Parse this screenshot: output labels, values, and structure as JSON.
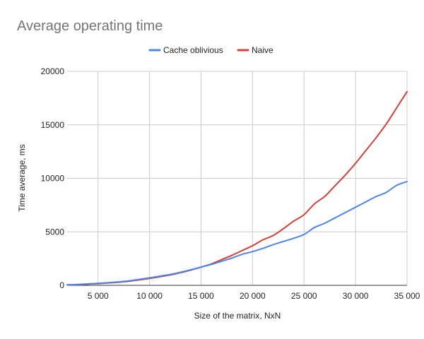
{
  "chart_data": {
    "type": "line",
    "title": "Average operating time",
    "xlabel": "Size of the matrix, NxN",
    "ylabel": "Time average, ms",
    "xlim": [
      2000,
      35000
    ],
    "ylim": [
      0,
      20000
    ],
    "xticks": [
      5000,
      10000,
      15000,
      20000,
      25000,
      30000,
      35000
    ],
    "xtick_labels": [
      "5 000",
      "10 000",
      "15 000",
      "20 000",
      "25 000",
      "30 000",
      "35 000"
    ],
    "yticks": [
      0,
      5000,
      10000,
      15000,
      20000
    ],
    "ytick_labels": [
      "0",
      "5000",
      "10000",
      "15000",
      "20000"
    ],
    "grid": true,
    "legend_position": "top-center",
    "series": [
      {
        "name": "Cache oblivious",
        "color": "#4a86e8",
        "x": [
          2000,
          3000,
          4000,
          5000,
          6000,
          7000,
          8000,
          9000,
          10000,
          11000,
          12000,
          13000,
          14000,
          15000,
          16000,
          17000,
          18000,
          19000,
          20000,
          21000,
          22000,
          23000,
          24000,
          25000,
          26000,
          27000,
          28000,
          29000,
          30000,
          31000,
          32000,
          33000,
          34000,
          35000
        ],
        "values": [
          50,
          80,
          130,
          190,
          250,
          320,
          420,
          560,
          700,
          860,
          1020,
          1220,
          1450,
          1700,
          1950,
          2250,
          2550,
          2900,
          3150,
          3450,
          3800,
          4100,
          4400,
          4750,
          5400,
          5800,
          6300,
          6800,
          7300,
          7800,
          8300,
          8700,
          9350,
          9700
        ]
      },
      {
        "name": "Naive",
        "color": "#d93f35",
        "x": [
          2000,
          3000,
          4000,
          5000,
          6000,
          7000,
          8000,
          9000,
          10000,
          11000,
          12000,
          13000,
          14000,
          15000,
          16000,
          17000,
          18000,
          19000,
          20000,
          21000,
          22000,
          23000,
          24000,
          25000,
          26000,
          27000,
          28000,
          29000,
          30000,
          31000,
          32000,
          33000,
          34000,
          35000
        ],
        "values": [
          40,
          70,
          110,
          160,
          220,
          290,
          380,
          500,
          640,
          800,
          970,
          1180,
          1420,
          1700,
          2000,
          2400,
          2800,
          3250,
          3700,
          4250,
          4650,
          5300,
          6000,
          6600,
          7600,
          8300,
          9300,
          10300,
          11400,
          12600,
          13800,
          15100,
          16600,
          18100
        ]
      }
    ]
  }
}
